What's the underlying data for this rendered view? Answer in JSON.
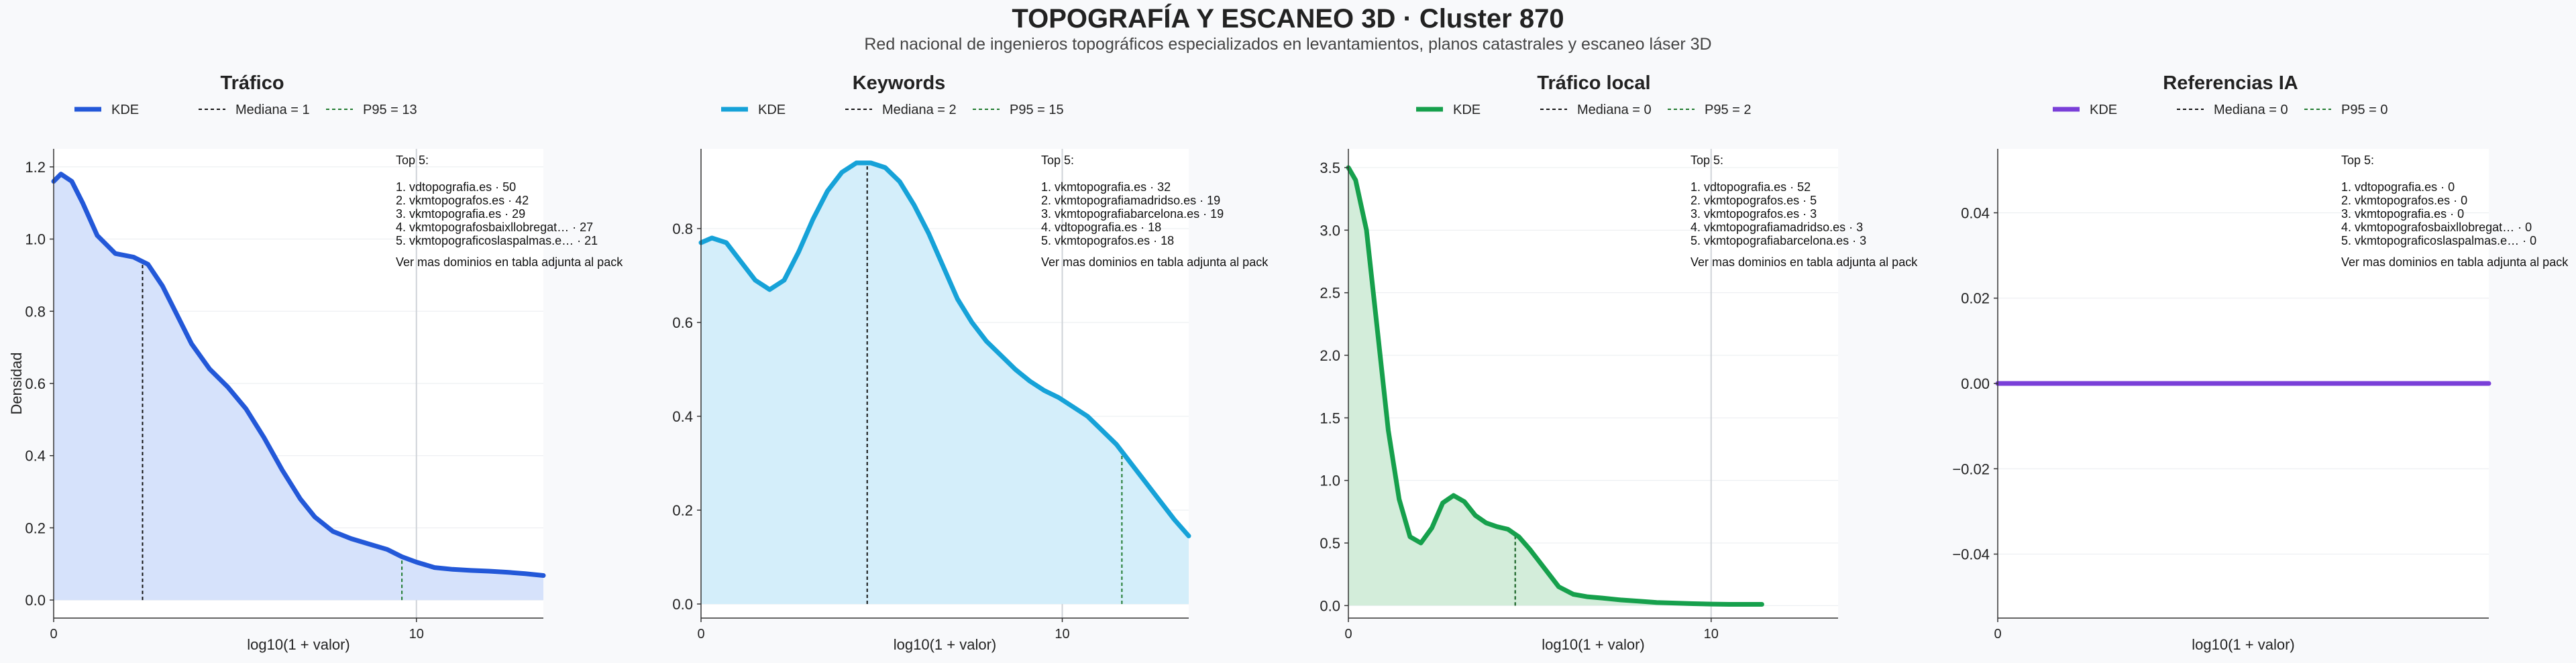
{
  "page": {
    "title": "TOPOGRAFÍA Y ESCANEO 3D · Cluster 870",
    "subtitle": "Red nacional de ingenieros topográficos especializados en levantamientos, planos catastrales y escaneo láser 3D"
  },
  "colors": {
    "background": "#f8f9fb",
    "median_line": "#111111",
    "p95_line": "#1f7a2e",
    "grid": "#e9ecef",
    "vertical_ref": "#cfd3d8"
  },
  "chart_data": [
    {
      "type": "area",
      "title": "Tráfico",
      "xlabel": "log10(1 + valor)",
      "ylabel": "Densidad",
      "color": "#2358d8",
      "fill": "#d6e2fb",
      "xlim": [
        0,
        13.5
      ],
      "ylim": [
        -0.05,
        1.25
      ],
      "xticks": [
        0,
        10
      ],
      "yticks": [
        0.0,
        0.2,
        0.4,
        0.6,
        0.8,
        1.0,
        1.2
      ],
      "ytick_labels": [
        "0.0",
        "0.2",
        "0.4",
        "0.6",
        "0.8",
        "1.0",
        "1.2"
      ],
      "legend": [
        "KDE",
        "Mediana = 1",
        "P95 = 13"
      ],
      "median_x": 2.45,
      "p95_x": 9.6,
      "ref_x": 10,
      "x": [
        0,
        0.2,
        0.5,
        0.8,
        1.2,
        1.7,
        2.2,
        2.6,
        3.0,
        3.4,
        3.8,
        4.3,
        4.8,
        5.3,
        5.8,
        6.3,
        6.8,
        7.2,
        7.7,
        8.2,
        8.7,
        9.2,
        9.6,
        10.0,
        10.5,
        11.0,
        11.5,
        12.0,
        12.5,
        13.0,
        13.5
      ],
      "y": [
        1.16,
        1.18,
        1.16,
        1.1,
        1.01,
        0.96,
        0.95,
        0.93,
        0.87,
        0.79,
        0.71,
        0.64,
        0.59,
        0.53,
        0.45,
        0.36,
        0.28,
        0.23,
        0.19,
        0.17,
        0.155,
        0.14,
        0.12,
        0.105,
        0.09,
        0.085,
        0.082,
        0.08,
        0.077,
        0.073,
        0.068
      ],
      "top5_header": "Top 5:",
      "top5": [
        "1. vdtopografia.es · 50",
        "2. vkmtopografos.es · 42",
        "3. vkmtopografia.es · 29",
        "4. vkmtopografosbaixllobregat… · 27",
        "5. vkmtopograficoslaspalmas.e… · 21"
      ],
      "note": "Ver mas dominios en tabla adjunta al pack"
    },
    {
      "type": "area",
      "title": "Keywords",
      "xlabel": "log10(1 + valor)",
      "ylabel": "",
      "color": "#16a2d8",
      "fill": "#d4eefa",
      "xlim": [
        0,
        13.5
      ],
      "ylim": [
        -0.03,
        0.97
      ],
      "xticks": [
        0,
        10
      ],
      "yticks": [
        0.0,
        0.2,
        0.4,
        0.6,
        0.8
      ],
      "ytick_labels": [
        "0.0",
        "0.2",
        "0.4",
        "0.6",
        "0.8"
      ],
      "legend": [
        "KDE",
        "Mediana = 2",
        "P95 = 15"
      ],
      "median_x": 4.6,
      "p95_x": 11.65,
      "ref_x": 10,
      "x": [
        0,
        0.3,
        0.7,
        1.1,
        1.5,
        1.9,
        2.3,
        2.7,
        3.1,
        3.5,
        3.9,
        4.3,
        4.7,
        5.1,
        5.5,
        5.9,
        6.3,
        6.7,
        7.1,
        7.5,
        7.9,
        8.3,
        8.7,
        9.1,
        9.5,
        9.9,
        10.3,
        10.7,
        11.1,
        11.5,
        11.9,
        12.3,
        12.7,
        13.1,
        13.5
      ],
      "y": [
        0.77,
        0.78,
        0.77,
        0.73,
        0.69,
        0.67,
        0.69,
        0.75,
        0.82,
        0.88,
        0.92,
        0.94,
        0.94,
        0.93,
        0.9,
        0.85,
        0.79,
        0.72,
        0.65,
        0.6,
        0.56,
        0.53,
        0.5,
        0.475,
        0.455,
        0.44,
        0.42,
        0.4,
        0.37,
        0.34,
        0.3,
        0.26,
        0.22,
        0.18,
        0.145
      ],
      "top5_header": "Top 5:",
      "top5": [
        "1. vkmtopografia.es · 32",
        "2. vkmtopografiamadridso.es · 19",
        "3. vkmtopografiabarcelona.es · 19",
        "4. vdtopografia.es · 18",
        "5. vkmtopografos.es · 18"
      ],
      "note": "Ver mas dominios en tabla adjunta al pack"
    },
    {
      "type": "area",
      "title": "Tráfico local",
      "xlabel": "log10(1 + valor)",
      "ylabel": "",
      "color": "#16a04c",
      "fill": "#d3edda",
      "xlim": [
        0,
        13.5
      ],
      "ylim": [
        -0.1,
        3.65
      ],
      "xticks": [
        0,
        10
      ],
      "yticks": [
        0.0,
        0.5,
        1.0,
        1.5,
        2.0,
        2.5,
        3.0,
        3.5
      ],
      "ytick_labels": [
        "0.0",
        "0.5",
        "1.0",
        "1.5",
        "2.0",
        "2.5",
        "3.0",
        "3.5"
      ],
      "legend": [
        "KDE",
        "Mediana = 0",
        "P95 = 2"
      ],
      "median_x": 4.6,
      "p95_x": 4.6,
      "ref_x": 10,
      "x": [
        0,
        0.2,
        0.5,
        0.8,
        1.1,
        1.4,
        1.7,
        2.0,
        2.3,
        2.6,
        2.9,
        3.2,
        3.5,
        3.8,
        4.1,
        4.4,
        4.7,
        5.0,
        5.4,
        5.8,
        6.2,
        6.6,
        7.0,
        7.5,
        8.0,
        8.5,
        9.0,
        9.5,
        10.0,
        10.5,
        11.0,
        11.4
      ],
      "y": [
        3.5,
        3.4,
        3.0,
        2.2,
        1.4,
        0.85,
        0.55,
        0.5,
        0.62,
        0.82,
        0.88,
        0.83,
        0.72,
        0.66,
        0.63,
        0.61,
        0.55,
        0.45,
        0.3,
        0.15,
        0.09,
        0.07,
        0.06,
        0.045,
        0.035,
        0.025,
        0.02,
        0.015,
        0.012,
        0.01,
        0.01,
        0.01
      ],
      "top5_header": "Top 5:",
      "top5": [
        "1. vdtopografia.es · 52",
        "2. vkmtopografos.es · 5",
        "3. vkmtopografos.es · 3",
        "4. vkmtopografiamadridso.es · 3",
        "5. vkmtopografiabarcelona.es · 3"
      ],
      "note": "Ver mas dominios en tabla adjunta al pack"
    },
    {
      "type": "line",
      "title": "Referencias IA",
      "xlabel": "log10(1 + valor)",
      "ylabel": "",
      "color": "#7a3fd8",
      "fill": "none",
      "xlim": [
        0,
        13.5
      ],
      "ylim": [
        -0.055,
        0.055
      ],
      "xticks": [
        0
      ],
      "yticks": [
        -0.04,
        -0.02,
        0.0,
        0.02,
        0.04
      ],
      "ytick_labels": [
        "−0.04",
        "−0.02",
        "0.00",
        "0.02",
        "0.04"
      ],
      "legend": [
        "KDE",
        "Mediana = 0",
        "P95 = 0"
      ],
      "median_x": null,
      "p95_x": null,
      "ref_x": null,
      "x": [
        0,
        13.5
      ],
      "y": [
        0,
        0
      ],
      "top5_header": "Top 5:",
      "top5": [
        "1. vdtopografia.es · 0",
        "2. vkmtopografos.es · 0",
        "3. vkmtopografia.es · 0",
        "4. vkmtopografosbaixllobregat… · 0",
        "5. vkmtopograficoslaspalmas.e… · 0"
      ],
      "note": "Ver mas dominios en tabla adjunta al pack"
    }
  ]
}
